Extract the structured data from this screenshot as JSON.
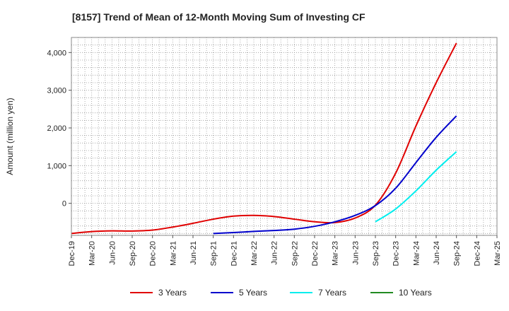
{
  "chart_data": {
    "type": "line",
    "title": "[8157]  Trend of Mean of 12-Month Moving Sum of Investing CF",
    "ylabel": "Amount (million yen)",
    "xlabel": "",
    "ylim": [
      -850,
      4400
    ],
    "yticks": [
      0,
      1000,
      2000,
      3000,
      4000
    ],
    "ytick_labels": [
      "0",
      "1,000",
      "2,000",
      "3,000",
      "4,000"
    ],
    "x_ticks": [
      "Dec-19",
      "Mar-20",
      "Jun-20",
      "Sep-20",
      "Dec-20",
      "Mar-21",
      "Jun-21",
      "Sep-21",
      "Dec-21",
      "Mar-22",
      "Jun-22",
      "Sep-22",
      "Dec-22",
      "Mar-23",
      "Jun-23",
      "Sep-23",
      "Dec-23",
      "Mar-24",
      "Jun-24",
      "Sep-24",
      "Dec-24",
      "Mar-25"
    ],
    "grid": true,
    "legend_position": "bottom",
    "series": [
      {
        "name": "3 Years",
        "color": "#e00000",
        "points": [
          [
            "Dec-19",
            -800
          ],
          [
            "Mar-20",
            -750
          ],
          [
            "Jun-20",
            -730
          ],
          [
            "Sep-20",
            -735
          ],
          [
            "Dec-20",
            -710
          ],
          [
            "Mar-21",
            -630
          ],
          [
            "Jun-21",
            -530
          ],
          [
            "Sep-21",
            -420
          ],
          [
            "Dec-21",
            -340
          ],
          [
            "Mar-22",
            -320
          ],
          [
            "Jun-22",
            -350
          ],
          [
            "Sep-22",
            -420
          ],
          [
            "Dec-22",
            -490
          ],
          [
            "Mar-23",
            -510
          ],
          [
            "Jun-23",
            -390
          ],
          [
            "Sep-23",
            -50
          ],
          [
            "Dec-23",
            800
          ],
          [
            "Mar-24",
            2050
          ],
          [
            "Jun-24",
            3200
          ],
          [
            "Sep-24",
            4250
          ]
        ]
      },
      {
        "name": "5 Years",
        "color": "#0000cc",
        "points": [
          [
            "Sep-21",
            -800
          ],
          [
            "Dec-21",
            -775
          ],
          [
            "Mar-22",
            -745
          ],
          [
            "Jun-22",
            -720
          ],
          [
            "Sep-22",
            -685
          ],
          [
            "Dec-22",
            -610
          ],
          [
            "Mar-23",
            -490
          ],
          [
            "Jun-23",
            -320
          ],
          [
            "Sep-23",
            -60
          ],
          [
            "Dec-23",
            400
          ],
          [
            "Mar-24",
            1080
          ],
          [
            "Jun-24",
            1750
          ],
          [
            "Sep-24",
            2320
          ]
        ]
      },
      {
        "name": "7 Years",
        "color": "#00eeee",
        "points": [
          [
            "Sep-23",
            -490
          ],
          [
            "Dec-23",
            -150
          ],
          [
            "Mar-24",
            330
          ],
          [
            "Jun-24",
            880
          ],
          [
            "Sep-24",
            1370
          ]
        ]
      },
      {
        "name": "10 Years",
        "color": "#228b22",
        "points": []
      }
    ]
  }
}
